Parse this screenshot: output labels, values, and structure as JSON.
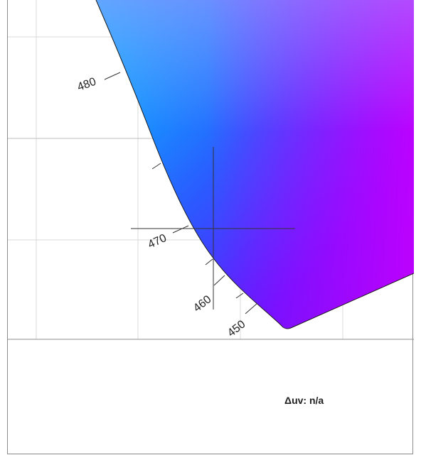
{
  "chromaticity_view": {
    "wavelength_labels": [
      "480",
      "470",
      "460",
      "450"
    ],
    "colors": {
      "grid": "#d8d8d8",
      "axis_border": "#8c8c8c",
      "locus_stroke": "#1a1a1a",
      "crosshair": "#333333",
      "gamut_cyan": "#00c8ff",
      "gamut_blue": "#3a2cff",
      "gamut_violet": "#8a00ff",
      "gamut_magenta": "#c000ff",
      "gamut_pink": "#9a60ff"
    }
  },
  "info_panel": {
    "delta_uv_text": "Δuv: n/a"
  }
}
